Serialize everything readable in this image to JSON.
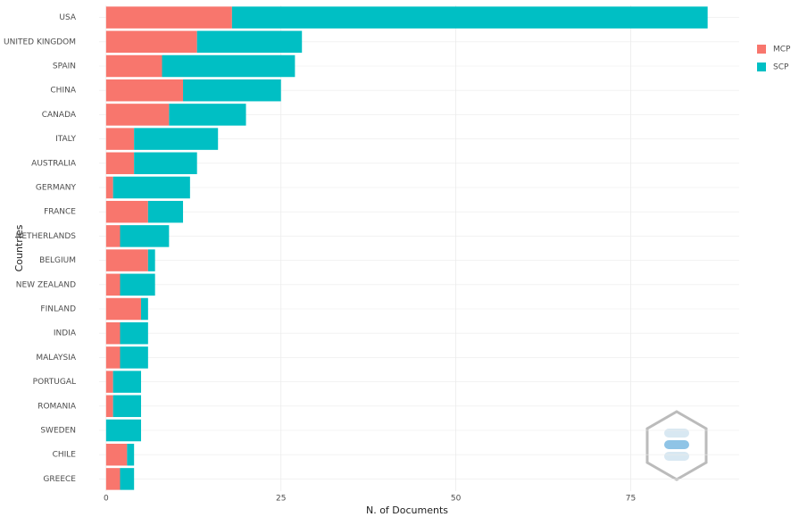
{
  "chart_data": {
    "type": "stacked-barh",
    "x_label": "N. of Documents",
    "y_label": "Countries",
    "categories": [
      "USA",
      "UNITED KINGDOM",
      "SPAIN",
      "CHINA",
      "CANADA",
      "ITALY",
      "AUSTRALIA",
      "GERMANY",
      "FRANCE",
      "NETHERLANDS",
      "BELGIUM",
      "NEW ZEALAND",
      "FINLAND",
      "INDIA",
      "MALAYSIA",
      "PORTUGAL",
      "ROMANIA",
      "SWEDEN",
      "CHILE",
      "GREECE"
    ],
    "series": [
      {
        "name": "MCP",
        "color": "#F8766D",
        "values": [
          18,
          13,
          8,
          11,
          9,
          4,
          4,
          1,
          6,
          2,
          6,
          2,
          5,
          2,
          2,
          1,
          1,
          0,
          3,
          2
        ]
      },
      {
        "name": "SCP",
        "color": "#00BFC4",
        "values": [
          68,
          15,
          19,
          14,
          11,
          12,
          9,
          11,
          5,
          7,
          1,
          5,
          1,
          4,
          4,
          4,
          4,
          5,
          1,
          2
        ]
      }
    ],
    "xlim": [
      -1,
      90
    ],
    "xticks": [
      0,
      25,
      50,
      75
    ],
    "grid": true,
    "legend": "right"
  }
}
